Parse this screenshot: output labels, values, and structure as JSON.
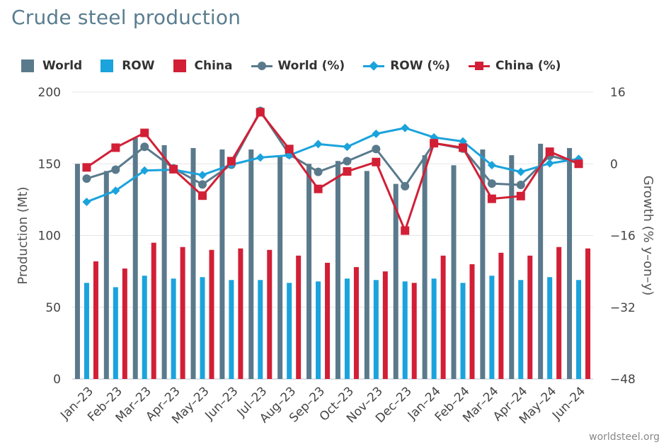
{
  "title": "Crude steel production",
  "source": "worldsteel.org",
  "legend": [
    {
      "label": "World",
      "kind": "bar",
      "color": "#5a7a8c"
    },
    {
      "label": "ROW",
      "kind": "bar",
      "color": "#1aa3dc"
    },
    {
      "label": "China",
      "kind": "bar",
      "color": "#d21f36"
    },
    {
      "label": "World (%)",
      "kind": "line-circle",
      "color": "#5a7a8c"
    },
    {
      "label": "ROW (%)",
      "kind": "line-diamond",
      "color": "#1aa3dc"
    },
    {
      "label": "China (%)",
      "kind": "line-square",
      "color": "#d21f36"
    }
  ],
  "chart_data": {
    "type": "bar",
    "categories": [
      "Jan–23",
      "Feb–23",
      "Mar–23",
      "Apr–23",
      "May–23",
      "Jun–23",
      "Jul–23",
      "Aug–23",
      "Sep–23",
      "Oct–23",
      "Nov–23",
      "Dec–23",
      "Jan–24",
      "Feb–24",
      "Mar–24",
      "Apr–24",
      "May–24",
      "Jun–24"
    ],
    "ylabel": "Production (Mt)",
    "y2label": "Growth (% y–on–y)",
    "ylim": [
      0,
      200
    ],
    "yticks": [
      "0",
      "50",
      "100",
      "150",
      "200"
    ],
    "y2lim": [
      -48,
      16
    ],
    "y2ticks": [
      "−48",
      "−32",
      "−16",
      "0",
      "16"
    ],
    "series": [
      {
        "name": "World",
        "type": "bar",
        "color": "#5a7a8c",
        "values": [
          150,
          145,
          168,
          163,
          161,
          160,
          160,
          155,
          150,
          152,
          145,
          136,
          156,
          149,
          160,
          156,
          164,
          161
        ]
      },
      {
        "name": "ROW",
        "type": "bar",
        "color": "#1aa3dc",
        "values": [
          67,
          64,
          72,
          70,
          71,
          69,
          69,
          67,
          68,
          70,
          69,
          68,
          70,
          67,
          72,
          69,
          71,
          69
        ]
      },
      {
        "name": "China",
        "type": "bar",
        "color": "#d21f36",
        "values": [
          82,
          77,
          95,
          92,
          90,
          91,
          90,
          86,
          81,
          78,
          75,
          67,
          86,
          80,
          88,
          86,
          92,
          91
        ]
      },
      {
        "name": "World (%)",
        "type": "line",
        "marker": "circle",
        "color": "#5a7a8c",
        "values": [
          -3.3,
          -1.3,
          3.8,
          -1.0,
          -4.6,
          -0.2,
          11.8,
          2.1,
          -1.8,
          0.6,
          3.3,
          -5.0,
          4.6,
          3.4,
          -4.4,
          -4.7,
          1.8,
          0.2
        ]
      },
      {
        "name": "ROW (%)",
        "type": "line",
        "marker": "diamond",
        "color": "#1aa3dc",
        "values": [
          -8.5,
          -6.0,
          -1.5,
          -1.3,
          -2.5,
          -0.2,
          1.4,
          1.9,
          4.4,
          3.8,
          6.7,
          8.0,
          5.9,
          5.0,
          -0.3,
          -1.8,
          0.1,
          1.1
        ]
      },
      {
        "name": "China (%)",
        "type": "line",
        "marker": "square",
        "color": "#d21f36",
        "values": [
          -0.8,
          3.6,
          6.9,
          -1.2,
          -7.1,
          0.6,
          11.5,
          3.3,
          -5.6,
          -1.7,
          0.4,
          -14.9,
          4.6,
          3.6,
          -7.8,
          -7.2,
          2.7,
          0.0
        ]
      }
    ]
  }
}
